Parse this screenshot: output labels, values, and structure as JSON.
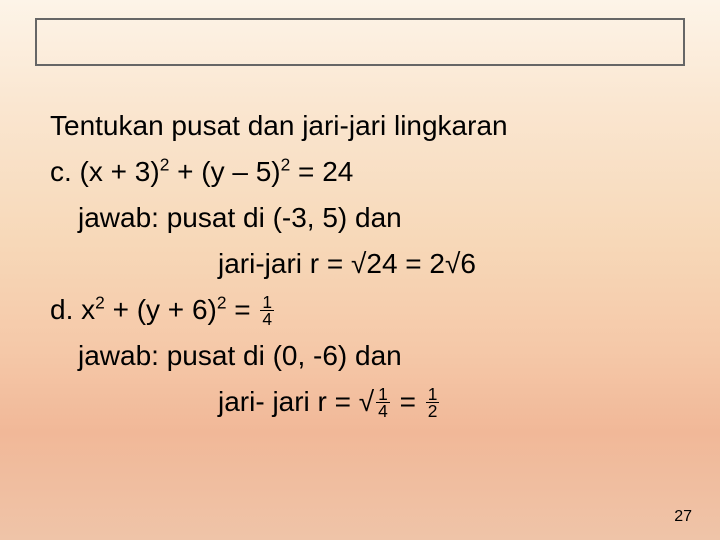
{
  "slide": {
    "title_line": "Tentukan pusat dan jari-jari lingkaran",
    "item_c": {
      "equation_prefix": "c. (x + 3)",
      "exp1": "2",
      "equation_mid": " + (y – 5)",
      "exp2": "2",
      "equation_suffix": " = 24",
      "answer_label": "jawab",
      "answer_l1": ": pusat di (-3, 5) dan",
      "answer_l2": "jari-jari r = √24 = 2√6"
    },
    "item_d": {
      "equation_prefix": "d. x",
      "exp1": "2",
      "equation_mid": " + (y + 6)",
      "exp2": "2",
      "equation_eq": " = ",
      "frac_num": "1",
      "frac_den": "4",
      "answer_label": "jawab",
      "answer_l1": ": pusat di (0, -6) dan",
      "answer_l2_pre": "jari- jari r = √",
      "frac2_num": "1",
      "frac2_den": "4",
      "answer_l2_mid": " = ",
      "frac3_num": "1",
      "frac3_den": "2"
    },
    "page_number": "27"
  },
  "style": {
    "bg_gradient_top": "#fdf4e8",
    "bg_gradient_bottom": "#efc4a8",
    "rule_color": "#666666",
    "text_color": "#000000",
    "title_fontsize": 28
  }
}
